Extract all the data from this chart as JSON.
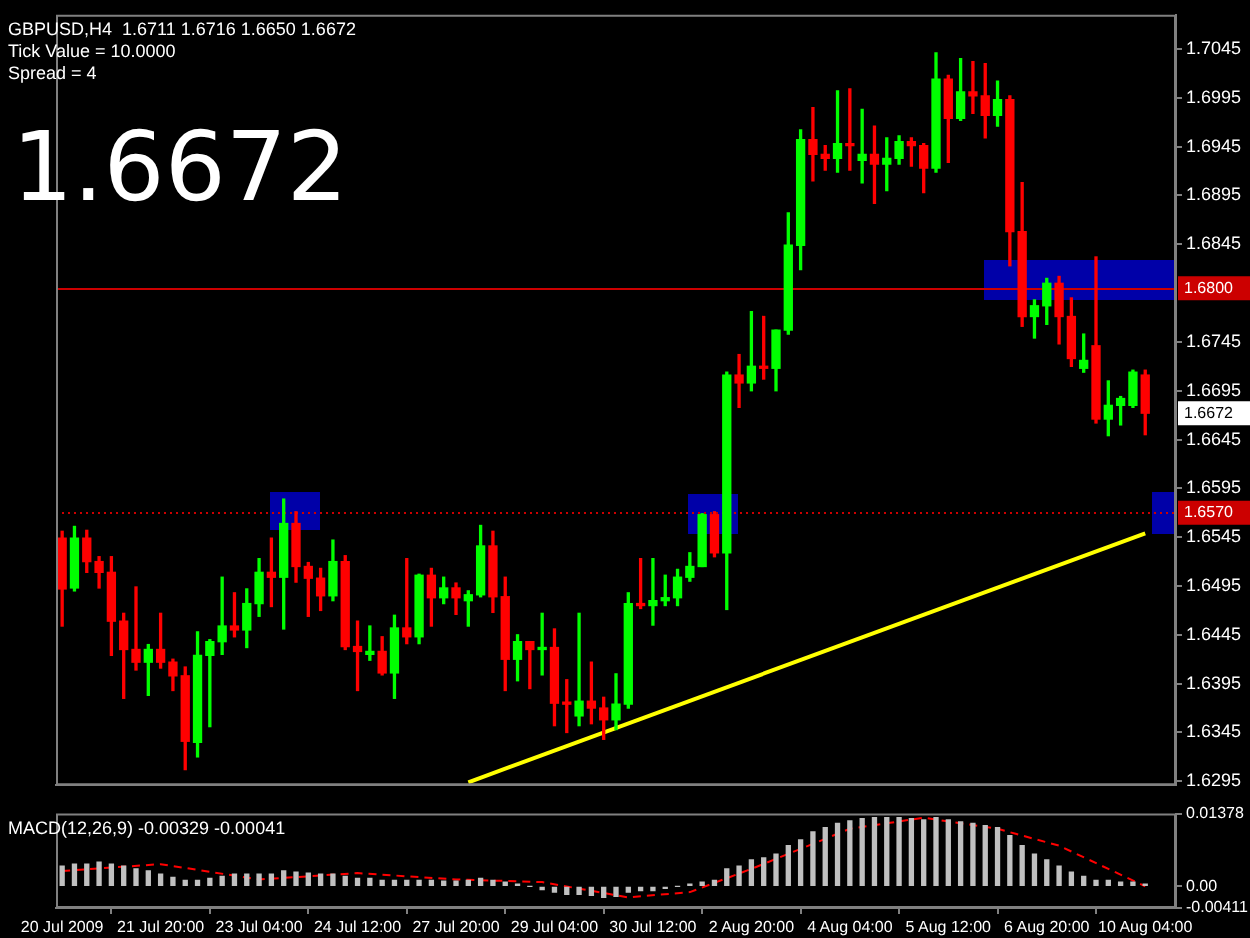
{
  "chart_data": [
    {
      "type": "candlestick",
      "title": "GBPUSD,H4  1.6711 1.6716 1.6650 1.6672",
      "annotations": [
        "Tick Value = 10.0000",
        "Spread = 4",
        "1.6672",
        {
          "text": "1.6672",
          "x": "10 Aug 04:00",
          "y": 1.6672
        }
      ],
      "categories": [
        "20 Jul 2009",
        null,
        null,
        null,
        null,
        null,
        null,
        null,
        "21 Jul 20:00",
        null,
        null,
        null,
        null,
        null,
        null,
        null,
        "23 Jul 04:00",
        null,
        null,
        null,
        null,
        null,
        null,
        null,
        "24 Jul 12:00",
        null,
        null,
        null,
        null,
        null,
        null,
        null,
        "27 Jul 20:00",
        null,
        null,
        null,
        null,
        null,
        null,
        null,
        "29 Jul 04:00",
        null,
        null,
        null,
        null,
        null,
        null,
        null,
        "30 Jul 12:00",
        null,
        null,
        null,
        null,
        null,
        null,
        null,
        "2 Aug 20:00",
        null,
        null,
        null,
        null,
        null,
        null,
        null,
        "4 Aug 04:00",
        null,
        null,
        null,
        null,
        null,
        null,
        null,
        "5 Aug 12:00",
        null,
        null,
        null,
        null,
        null,
        null,
        null,
        "6 Aug 20:00",
        null,
        null,
        null,
        null,
        null,
        null,
        null,
        "10 Aug 04:00"
      ],
      "ohlc": [
        [
          1.6544,
          1.6551,
          1.6454,
          1.6492
        ],
        [
          1.6493,
          1.6556,
          1.649,
          1.6544
        ],
        [
          1.6544,
          1.6552,
          1.6509,
          1.652
        ],
        [
          1.652,
          1.6525,
          1.6493,
          1.6509
        ],
        [
          1.6509,
          1.6525,
          1.6424,
          1.6459
        ],
        [
          1.6459,
          1.6467,
          1.638,
          1.643
        ],
        [
          1.643,
          1.6494,
          1.6409,
          1.6417
        ],
        [
          1.6417,
          1.6435,
          1.6383,
          1.643
        ],
        [
          1.643,
          1.6467,
          1.6411,
          1.6417
        ],
        [
          1.6417,
          1.642,
          1.6388,
          1.6403
        ],
        [
          1.6403,
          1.6412,
          1.6307,
          1.6336
        ],
        [
          1.6335,
          1.6448,
          1.632,
          1.6424
        ],
        [
          1.6424,
          1.644,
          1.6351,
          1.6438
        ],
        [
          1.6438,
          1.6504,
          1.6425,
          1.6454
        ],
        [
          1.6454,
          1.6488,
          1.6443,
          1.645
        ],
        [
          1.645,
          1.6492,
          1.6432,
          1.6477
        ],
        [
          1.6477,
          1.6523,
          1.6464,
          1.6509
        ],
        [
          1.6509,
          1.6544,
          1.6474,
          1.6504
        ],
        [
          1.6504,
          1.6584,
          1.6451,
          1.6559
        ],
        [
          1.6559,
          1.6571,
          1.6499,
          1.6515
        ],
        [
          1.6515,
          1.6519,
          1.6464,
          1.6503
        ],
        [
          1.6503,
          1.6513,
          1.647,
          1.6485
        ],
        [
          1.6485,
          1.6542,
          1.648,
          1.652
        ],
        [
          1.652,
          1.6526,
          1.643,
          1.6433
        ],
        [
          1.6433,
          1.6459,
          1.6388,
          1.6428
        ],
        [
          1.6425,
          1.6454,
          1.6419,
          1.6428
        ],
        [
          1.6428,
          1.6443,
          1.6404,
          1.6406
        ],
        [
          1.6406,
          1.6465,
          1.638,
          1.6452
        ],
        [
          1.6452,
          1.6523,
          1.6436,
          1.6443
        ],
        [
          1.6443,
          1.6507,
          1.6436,
          1.6506
        ],
        [
          1.6506,
          1.6513,
          1.6454,
          1.6483
        ],
        [
          1.6483,
          1.6504,
          1.6477,
          1.6493
        ],
        [
          1.6493,
          1.6498,
          1.6466,
          1.6483
        ],
        [
          1.648,
          1.649,
          1.6454,
          1.6486
        ],
        [
          1.6486,
          1.6557,
          1.6484,
          1.6536
        ],
        [
          1.6536,
          1.6551,
          1.6468,
          1.6484
        ],
        [
          1.6484,
          1.6504,
          1.6388,
          1.642
        ],
        [
          1.642,
          1.6445,
          1.6398,
          1.6438
        ],
        [
          1.6438,
          1.6438,
          1.639,
          1.643
        ],
        [
          1.643,
          1.6467,
          1.6404,
          1.6432
        ],
        [
          1.6432,
          1.6451,
          1.6352,
          1.6375
        ],
        [
          1.6375,
          1.6399,
          1.6345,
          1.6374
        ],
        [
          1.6362,
          1.6467,
          1.6352,
          1.6377
        ],
        [
          1.6377,
          1.6417,
          1.6354,
          1.637
        ],
        [
          1.637,
          1.6381,
          1.6338,
          1.6358
        ],
        [
          1.6358,
          1.6405,
          1.6348,
          1.6374
        ],
        [
          1.6374,
          1.6488,
          1.637,
          1.6477
        ],
        [
          1.6477,
          1.6523,
          1.6472,
          1.6475
        ],
        [
          1.6475,
          1.6523,
          1.6455,
          1.648
        ],
        [
          1.648,
          1.6506,
          1.6475,
          1.6483
        ],
        [
          1.6483,
          1.6512,
          1.6475,
          1.6504
        ],
        [
          1.6504,
          1.6529,
          1.65,
          1.6515
        ],
        [
          1.6515,
          1.6569,
          1.6515,
          1.6568
        ],
        [
          1.6568,
          1.6571,
          1.6525,
          1.6529
        ],
        [
          1.6529,
          1.6714,
          1.6471,
          1.6711
        ],
        [
          1.6711,
          1.6732,
          1.6678,
          1.6703
        ],
        [
          1.6703,
          1.6776,
          1.6695,
          1.672
        ],
        [
          1.672,
          1.6771,
          1.6707,
          1.6718
        ],
        [
          1.6718,
          1.6757,
          1.6695,
          1.6757
        ],
        [
          1.6757,
          1.6877,
          1.6753,
          1.6844
        ],
        [
          1.6844,
          1.6962,
          1.6819,
          1.6952
        ],
        [
          1.6952,
          1.6985,
          1.691,
          1.6937
        ],
        [
          1.6937,
          1.6946,
          1.6921,
          1.6933
        ],
        [
          1.6933,
          1.7002,
          1.6919,
          1.6948
        ],
        [
          1.6948,
          1.7004,
          1.6921,
          1.6946
        ],
        [
          1.6931,
          1.6983,
          1.6908,
          1.6937
        ],
        [
          1.6937,
          1.6966,
          1.6887,
          1.6927
        ],
        [
          1.6927,
          1.6954,
          1.69,
          1.6933
        ],
        [
          1.6933,
          1.6956,
          1.6927,
          1.695
        ],
        [
          1.695,
          1.6954,
          1.6925,
          1.6946
        ],
        [
          1.6946,
          1.6948,
          1.6898,
          1.6923
        ],
        [
          1.6923,
          1.7041,
          1.6919,
          1.7014
        ],
        [
          1.7014,
          1.7018,
          1.6929,
          1.6974
        ],
        [
          1.6974,
          1.7035,
          1.6972,
          1.7001
        ],
        [
          1.7001,
          1.7032,
          1.6979,
          1.6997
        ],
        [
          1.6997,
          1.703,
          1.6954,
          1.6977
        ],
        [
          1.6977,
          1.7012,
          1.6966,
          1.6993
        ],
        [
          1.6993,
          1.6997,
          1.6823,
          1.6858
        ],
        [
          1.6858,
          1.6908,
          1.6761,
          1.6771
        ],
        [
          1.6771,
          1.6788,
          1.6749,
          1.6782
        ],
        [
          1.6782,
          1.681,
          1.6763,
          1.6805
        ],
        [
          1.6805,
          1.6812,
          1.6743,
          1.6771
        ],
        [
          1.6771,
          1.679,
          1.672,
          1.6728
        ],
        [
          1.6718,
          1.6753,
          1.6714,
          1.6726
        ],
        [
          1.6741,
          1.6832,
          1.6662,
          1.6666
        ],
        [
          1.6666,
          1.6705,
          1.6649,
          1.668
        ],
        [
          1.668,
          1.6689,
          1.666,
          1.6687
        ],
        [
          1.668,
          1.6716,
          1.6678,
          1.6714
        ],
        [
          1.6711,
          1.6716,
          1.665,
          1.6672
        ]
      ],
      "colors": [
        "#ff0000",
        "#00ff00",
        "#ff0000",
        "#ff0000",
        "#ff0000",
        "#ff0000",
        "#ff0000",
        "#00ff00",
        "#ff0000",
        "#ff0000",
        "#ff0000",
        "#00ff00",
        "#00ff00",
        "#00ff00",
        "#ff0000",
        "#00ff00",
        "#00ff00",
        "#ff0000",
        "#00ff00",
        "#ff0000",
        "#ff0000",
        "#ff0000",
        "#00ff00",
        "#ff0000",
        "#ff0000",
        "#00ff00",
        "#ff0000",
        "#00ff00",
        "#ff0000",
        "#00ff00",
        "#ff0000",
        "#00ff00",
        "#ff0000",
        "#00ff00",
        "#00ff00",
        "#ff0000",
        "#ff0000",
        "#00ff00",
        "#ff0000",
        "#00ff00",
        "#ff0000",
        "#ff0000",
        "#00ff00",
        "#ff0000",
        "#ff0000",
        "#00ff00",
        "#00ff00",
        "#ff0000",
        "#00ff00",
        "#00ff00",
        "#00ff00",
        "#00ff00",
        "#00ff00",
        "#ff0000",
        "#00ff00",
        "#ff0000",
        "#00ff00",
        "#ff0000",
        "#00ff00",
        "#00ff00",
        "#00ff00",
        "#ff0000",
        "#ff0000",
        "#00ff00",
        "#ff0000",
        "#00ff00",
        "#ff0000",
        "#00ff00",
        "#00ff00",
        "#ff0000",
        "#ff0000",
        "#00ff00",
        "#ff0000",
        "#00ff00",
        "#ff0000",
        "#ff0000",
        "#00ff00",
        "#ff0000",
        "#ff0000",
        "#00ff00",
        "#00ff00",
        "#ff0000",
        "#ff0000",
        "#00ff00",
        "#ff0000",
        "#00ff00",
        "#00ff00",
        "#00ff00",
        "#ff0000"
      ],
      "series": [
        {
          "type": "line",
          "color": "#ffff00",
          "values": [
            null,
            null,
            null,
            null,
            null,
            null,
            null,
            null,
            null,
            null,
            null,
            null,
            null,
            null,
            null,
            null,
            null,
            null,
            null,
            null,
            null,
            null,
            null,
            null,
            null,
            null,
            null,
            null,
            null,
            null,
            null,
            null,
            null,
            1.6294,
            null,
            null,
            null,
            null,
            null,
            null,
            null,
            null,
            null,
            null,
            null,
            null,
            null,
            null,
            null,
            null,
            null,
            null,
            null,
            null,
            null,
            null,
            null,
            null,
            null,
            null,
            null,
            null,
            null,
            null,
            null,
            null,
            null,
            null,
            null,
            null,
            null,
            null,
            null,
            null,
            null,
            null,
            null,
            null,
            null,
            null,
            null,
            null,
            null,
            null,
            null,
            null,
            null,
            null,
            1.6549
          ]
        }
      ],
      "ylim": [
        1.6291,
        1.708
      ],
      "yticks": [
        1.6295,
        1.6345,
        1.6395,
        1.6445,
        1.6495,
        1.6545,
        1.6595,
        1.6645,
        1.6695,
        1.6745,
        1.6845,
        1.6895,
        1.6945,
        1.6995,
        1.7045
      ],
      "ref_lines": [
        {
          "axis": "y",
          "value": 1.68,
          "label": "1.6800",
          "color": "#cc0000"
        },
        {
          "axis": "y",
          "value": 1.657,
          "label": "1.6570",
          "color": "#cc0000",
          "line_style": "dotted"
        }
      ],
      "grid": false,
      "legend": false,
      "tick_labels": "y"
    },
    {
      "type": "bar",
      "title": "MACD(12,26,9) -0.00329 -0.00041",
      "categories": [
        "20 Jul 2009",
        null,
        null,
        null,
        null,
        null,
        null,
        null,
        "21 Jul 20:00",
        null,
        null,
        null,
        null,
        null,
        null,
        null,
        "23 Jul 04:00",
        null,
        null,
        null,
        null,
        null,
        null,
        null,
        "24 Jul 12:00",
        null,
        null,
        null,
        null,
        null,
        null,
        null,
        "27 Jul 20:00",
        null,
        null,
        null,
        null,
        null,
        null,
        null,
        "29 Jul 04:00",
        null,
        null,
        null,
        null,
        null,
        null,
        null,
        "30 Jul 12:00",
        null,
        null,
        null,
        null,
        null,
        null,
        null,
        "2 Aug 20:00",
        null,
        null,
        null,
        null,
        null,
        null,
        null,
        "4 Aug 04:00",
        null,
        null,
        null,
        null,
        null,
        null,
        null,
        "5 Aug 12:00",
        null,
        null,
        null,
        null,
        null,
        null,
        null,
        "6 Aug 20:00",
        null,
        null,
        null,
        null,
        null,
        null,
        null,
        "10 Aug 04:00"
      ],
      "series": [
        {
          "type": "bar",
          "color": "#c0c0c0",
          "values": [
            0.0038,
            0.0042,
            0.0042,
            0.0046,
            0.0042,
            0.0038,
            0.0033,
            0.0029,
            0.0023,
            0.0017,
            0.0011,
            0.0011,
            0.0015,
            0.0019,
            0.0023,
            0.0023,
            0.0023,
            0.0023,
            0.0029,
            0.0027,
            0.0025,
            0.0023,
            0.0023,
            0.0019,
            0.0015,
            0.0015,
            0.0011,
            0.0011,
            0.0011,
            0.0011,
            0.0011,
            0.001,
            0.001,
            0.0011,
            0.0015,
            0.0011,
            0.0008,
            0.0004,
            0,
            -0.0006,
            -0.0011,
            -0.0015,
            -0.0015,
            -0.0017,
            -0.0021,
            -0.0019,
            -0.0011,
            -0.0008,
            -0.0008,
            -0.0004,
            0,
            0.0004,
            0.0008,
            0.0011,
            0.0033,
            0.0038,
            0.005,
            0.0054,
            0.0061,
            0.0077,
            0.0088,
            0.0103,
            0.0111,
            0.0119,
            0.0124,
            0.0128,
            0.013,
            0.013,
            0.013,
            0.0128,
            0.0126,
            0.013,
            0.0126,
            0.0122,
            0.0119,
            0.0115,
            0.0111,
            0.0096,
            0.0077,
            0.0061,
            0.005,
            0.0038,
            0.0027,
            0.0019,
            0.0011,
            0.0011,
            0.0008,
            0.0008,
            0.0004
          ]
        },
        {
          "type": "line",
          "color": "#ff0000",
          "line_style": "dashed",
          "values": [
            0.0029,
            null,
            null,
            null,
            null,
            null,
            null,
            null,
            0.0042,
            null,
            null,
            null,
            null,
            null,
            null,
            null,
            0.0013,
            null,
            null,
            null,
            null,
            null,
            null,
            null,
            0.0025,
            null,
            null,
            null,
            null,
            null,
            null,
            null,
            0.0013,
            null,
            null,
            null,
            null,
            null,
            null,
            0.0008,
            null,
            null,
            null,
            null,
            null,
            null,
            -0.0021,
            null,
            null,
            null,
            null,
            -0.0011,
            null,
            null,
            null,
            null,
            0.0033,
            null,
            null,
            null,
            null,
            null,
            null,
            null,
            0.0109,
            null,
            null,
            null,
            null,
            null,
            0.013,
            null,
            null,
            null,
            null,
            null,
            0.0109,
            null,
            null,
            null,
            null,
            0.0077,
            null,
            null,
            null,
            null,
            null,
            null,
            0
          ]
        }
      ],
      "ylim": [
        -0.00411,
        0.01378
      ],
      "yticks": [
        -0.00411,
        {
          "value": 0,
          "label": "0.00"
        },
        0.01378
      ],
      "grid": false,
      "legend": false
    }
  ]
}
